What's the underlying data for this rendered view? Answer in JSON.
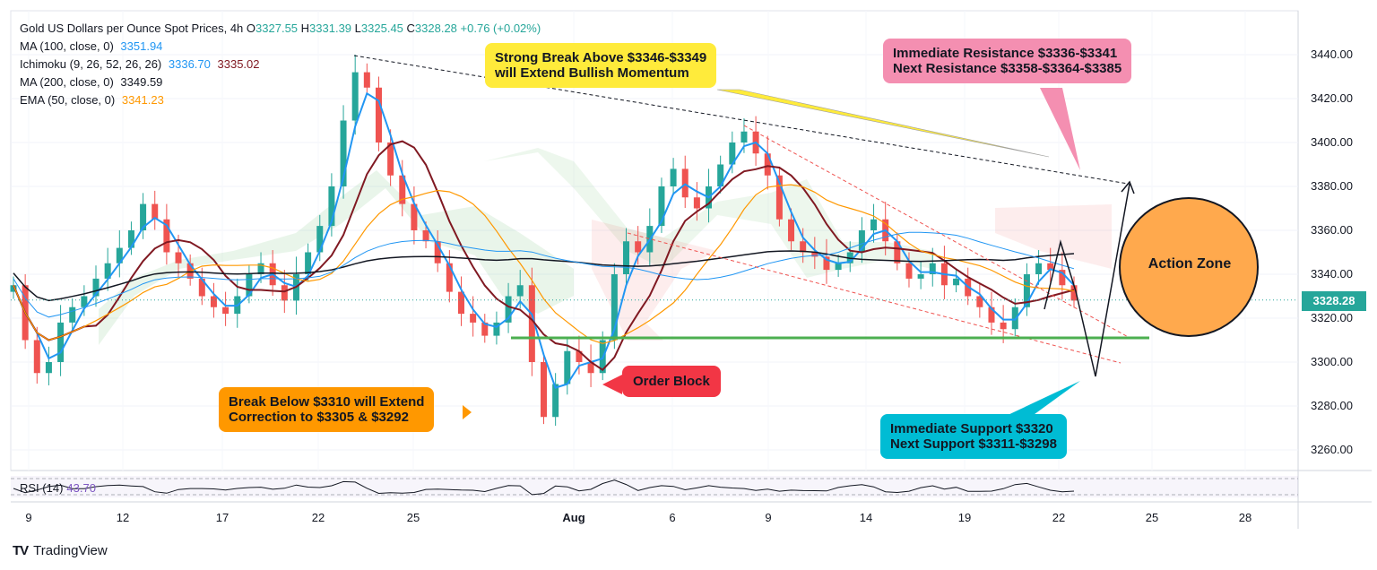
{
  "header": {
    "title": "Gold US Dollars per Ounce Spot Prices, 4h",
    "ohlc": {
      "o_label": "O",
      "o": "3327.55",
      "h_label": "H",
      "h": "3331.39",
      "l_label": "L",
      "l": "3325.45",
      "c_label": "C",
      "c": "3328.28",
      "change": "+0.76 (+0.02%)"
    }
  },
  "indicators": [
    {
      "label": "MA (100, close, 0)",
      "value": "3351.94",
      "color": "#2196f3"
    },
    {
      "label": "Ichimoku (9, 26, 52, 26, 26)",
      "value": "3336.70",
      "value2": "3335.02",
      "color": "#2196f3",
      "color2": "#801922"
    },
    {
      "label": "MA (200, close, 0)",
      "value": "3349.59",
      "color": "#131722"
    },
    {
      "label": "EMA (50, close, 0)",
      "value": "3341.23",
      "color": "#ff9800"
    }
  ],
  "rsi": {
    "label": "RSI (14)",
    "value": "43.70"
  },
  "current_price": "3328.28",
  "brand": "TradingView",
  "annotations": {
    "bullish": [
      "Strong Break Above $3346-$3349",
      "will Extend Bullish Momentum"
    ],
    "resistance": [
      "Immediate Resistance $3336-$3341",
      "Next Resistance $3358-$3364-$3385"
    ],
    "order_block": "Order Block",
    "bearish": [
      "Break Below $3310 will Extend",
      "Correction to $3305 & $3292"
    ],
    "support": [
      "Immediate Support $3320",
      "Next Support $3311-$3298"
    ],
    "action_zone": "Action Zone"
  },
  "colors": {
    "up": "#26a69a",
    "down": "#ef5350",
    "support_line": "#4caf50",
    "action_zone": "#ffa94d"
  },
  "chart_data": {
    "type": "candlestick",
    "ylim": [
      3250,
      3450
    ],
    "y_ticks": [
      "3440.00",
      "3420.00",
      "3400.00",
      "3380.00",
      "3360.00",
      "3340.00",
      "3320.00",
      "3300.00",
      "3280.00",
      "3260.00"
    ],
    "x_ticks": [
      {
        "label": "9",
        "bold": false
      },
      {
        "label": "12",
        "bold": false
      },
      {
        "label": "17",
        "bold": false
      },
      {
        "label": "22",
        "bold": false
      },
      {
        "label": "25",
        "bold": false
      },
      {
        "label": "Aug",
        "bold": true
      },
      {
        "label": "6",
        "bold": false
      },
      {
        "label": "9",
        "bold": false
      },
      {
        "label": "14",
        "bold": false
      },
      {
        "label": "19",
        "bold": false
      },
      {
        "label": "22",
        "bold": false
      },
      {
        "label": "25",
        "bold": false
      },
      {
        "label": "28",
        "bold": false
      }
    ],
    "close_path": [
      3335,
      3310,
      3295,
      3300,
      3318,
      3325,
      3330,
      3338,
      3345,
      3352,
      3360,
      3372,
      3365,
      3350,
      3345,
      3338,
      3330,
      3325,
      3322,
      3330,
      3340,
      3345,
      3335,
      3328,
      3340,
      3350,
      3362,
      3380,
      3410,
      3432,
      3425,
      3400,
      3385,
      3372,
      3360,
      3355,
      3345,
      3332,
      3322,
      3318,
      3312,
      3318,
      3330,
      3335,
      3300,
      3275,
      3290,
      3305,
      3300,
      3295,
      3310,
      3340,
      3355,
      3350,
      3362,
      3380,
      3388,
      3375,
      3370,
      3380,
      3390,
      3400,
      3405,
      3395,
      3385,
      3365,
      3355,
      3350,
      3348,
      3342,
      3345,
      3350,
      3360,
      3365,
      3355,
      3345,
      3338,
      3340,
      3345,
      3335,
      3338,
      3330,
      3325,
      3318,
      3315,
      3325,
      3340,
      3345,
      3342,
      3335,
      3328
    ],
    "support_level": 3311,
    "current": 3328.28
  }
}
